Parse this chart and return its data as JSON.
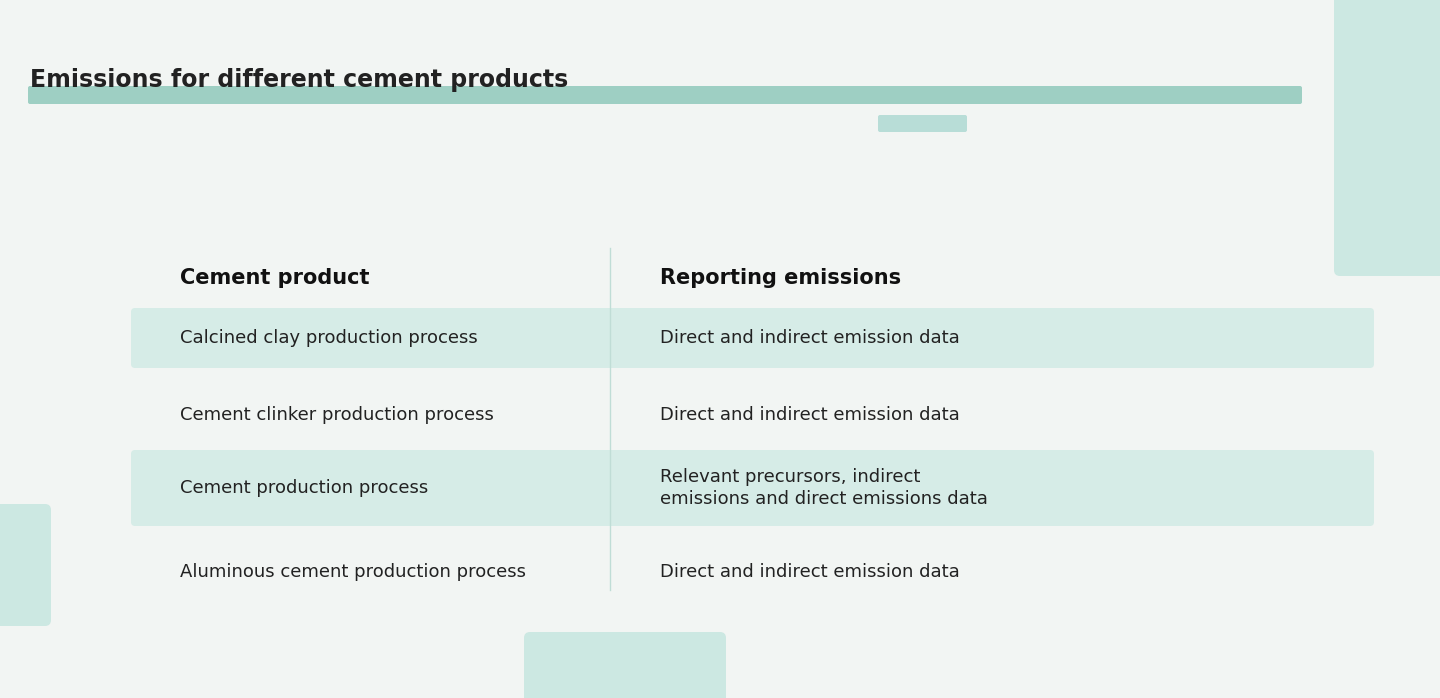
{
  "title": "Emissions for different cement products",
  "background_color": "#f2f5f3",
  "title_fontsize": 17,
  "title_fontweight": "bold",
  "col1_header": "Cement product",
  "col2_header": "Reporting emissions",
  "header_fontsize": 15,
  "header_fontweight": "bold",
  "divider_color": "#c0ddd6",
  "rows": [
    {
      "col1": "Calcined clay production process",
      "col2": "Direct and indirect emission data",
      "col2_lines": [
        "Direct and indirect emission data"
      ],
      "highlighted": true
    },
    {
      "col1": "Cement clinker production process",
      "col2": "Direct and indirect emission data",
      "col2_lines": [
        "Direct and indirect emission data"
      ],
      "highlighted": false
    },
    {
      "col1": "Cement production process",
      "col2": "Relevant precursors, indirect\nemissions and direct emissions data",
      "col2_lines": [
        "Relevant precursors, indirect",
        "emissions and direct emissions data"
      ],
      "highlighted": true
    },
    {
      "col1": "Aluminous cement production process",
      "col2": "Direct and indirect emission data",
      "col2_lines": [
        "Direct and indirect emission data"
      ],
      "highlighted": false
    }
  ],
  "row_fontsize": 13,
  "highlight_color": "#d6ece7",
  "text_color": "#222222",
  "header_text_color": "#111111",
  "top_bar_color": "#9ecfc3",
  "top_bar2_color": "#b8ddd7",
  "accent_color": "#cce8e2",
  "fig_width": 14.4,
  "fig_height": 6.98,
  "dpi": 100
}
